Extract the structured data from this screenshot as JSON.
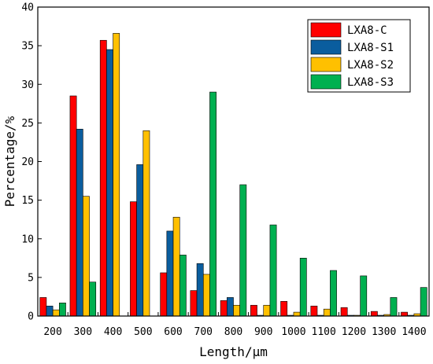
{
  "chart_data": {
    "type": "bar",
    "xlabel": "Length/μm",
    "ylabel": "Percentage/%",
    "ylim": [
      0,
      40
    ],
    "yticks": [
      0,
      5,
      10,
      15,
      20,
      25,
      30,
      35,
      40
    ],
    "categories": [
      "200",
      "300",
      "400",
      "500",
      "600",
      "700",
      "800",
      "900",
      "1000",
      "1100",
      "1200",
      "1300",
      "1400"
    ],
    "legend_position": "top-right",
    "grid": false,
    "series": [
      {
        "name": "LXA8-C",
        "color": "#ff0000",
        "values": [
          2.4,
          28.5,
          35.7,
          14.8,
          5.6,
          3.3,
          2.0,
          1.4,
          1.9,
          1.3,
          1.1,
          0.6,
          0.5
        ]
      },
      {
        "name": "LXA8-S1",
        "color": "#0a5d9e",
        "values": [
          1.3,
          24.2,
          34.5,
          19.6,
          11.0,
          6.8,
          2.4,
          0.1,
          0.1,
          0.1,
          0.1,
          0.1,
          0.1
        ]
      },
      {
        "name": "LXA8-S2",
        "color": "#ffc000",
        "values": [
          0.8,
          15.5,
          36.6,
          24.0,
          12.8,
          5.4,
          1.4,
          1.4,
          0.5,
          0.9,
          0.1,
          0.2,
          0.3
        ]
      },
      {
        "name": "LXA8-S3",
        "color": "#00b050",
        "values": [
          1.7,
          4.4,
          0.0,
          0.0,
          7.9,
          29.0,
          17.0,
          11.8,
          7.5,
          5.9,
          5.2,
          2.4,
          3.7
        ]
      }
    ]
  }
}
